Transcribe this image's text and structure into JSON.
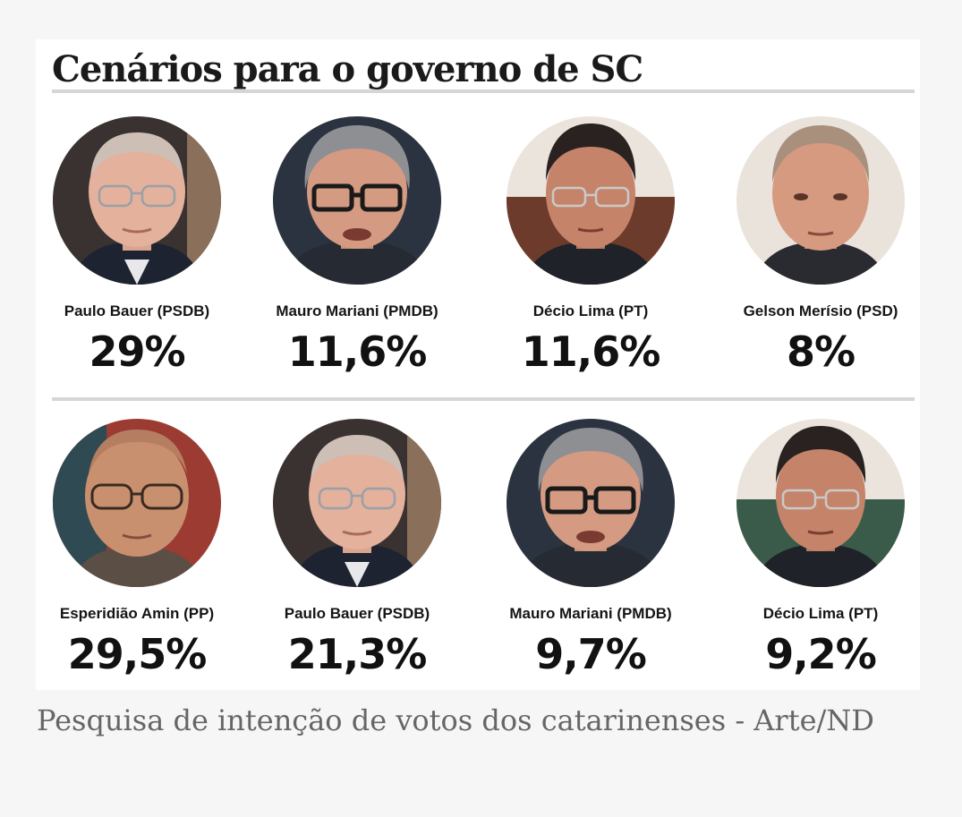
{
  "title": "Cenários para o governo de SC",
  "scenarios": [
    {
      "candidates": [
        {
          "name": "Paulo Bauer (PSDB)",
          "percent": "29%",
          "portrait": "paulo-bauer-portrait"
        },
        {
          "name": "Mauro Mariani (PMDB)",
          "percent": "11,6%",
          "portrait": "mauro-mariani-portrait"
        },
        {
          "name": "Décio Lima (PT)",
          "percent": "11,6%",
          "portrait": "decio-lima-portrait"
        },
        {
          "name": "Gelson Merísio (PSD)",
          "percent": "8%",
          "portrait": "gelson-merisio-portrait"
        }
      ]
    },
    {
      "candidates": [
        {
          "name": "Esperidião Amin (PP)",
          "percent": "29,5%",
          "portrait": "esperidiao-amin-portrait"
        },
        {
          "name": "Paulo Bauer (PSDB)",
          "percent": "21,3%",
          "portrait": "paulo-bauer-portrait"
        },
        {
          "name": "Mauro Mariani (PMDB)",
          "percent": "9,7%",
          "portrait": "mauro-mariani-portrait"
        },
        {
          "name": "Décio Lima (PT)",
          "percent": "9,2%",
          "portrait": "decio-lima-portrait"
        }
      ]
    }
  ],
  "caption": "Pesquisa de intenção de votos dos catarinenses - Arte/ND"
}
